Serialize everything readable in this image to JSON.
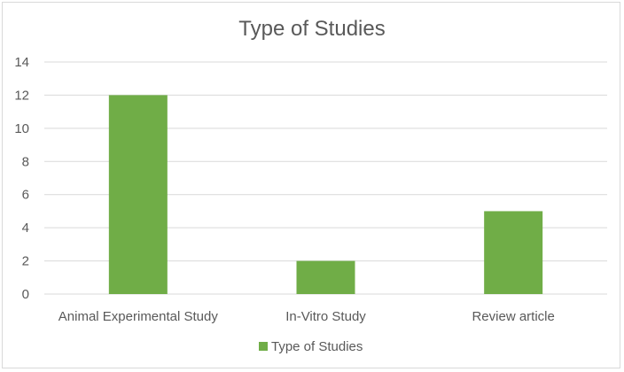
{
  "chart_data": {
    "type": "bar",
    "title": "Type of Studies",
    "categories": [
      "Animal Experimental Study",
      "In-Vitro Study",
      "Review article"
    ],
    "series": [
      {
        "name": "Type of Studies",
        "values": [
          12,
          2,
          5
        ],
        "color": "#70ad47"
      }
    ],
    "ylim": [
      0,
      14
    ],
    "yticks": [
      0,
      2,
      4,
      6,
      8,
      10,
      12,
      14
    ],
    "grid": true,
    "legend_position": "bottom"
  }
}
